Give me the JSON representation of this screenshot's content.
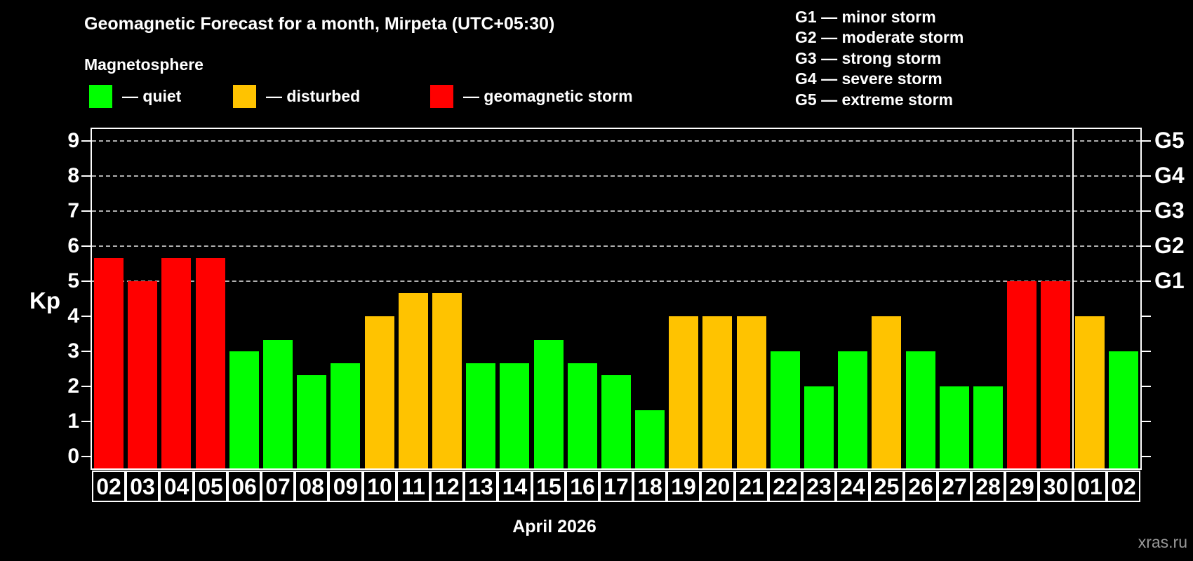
{
  "title": "Geomagnetic Forecast for a month, Mirpeta (UTC+05:30)",
  "subtitle": "Magnetosphere",
  "legend": {
    "quiet": "— quiet",
    "disturbed": "— disturbed",
    "storm": "— geomagnetic storm"
  },
  "g_legend": [
    "G1 — minor storm",
    "G2 — moderate storm",
    "G3 — strong storm",
    "G4 — severe storm",
    "G5 — extreme storm"
  ],
  "colors": {
    "quiet": "#00ff00",
    "disturbed": "#ffc300",
    "storm": "#ff0000",
    "background": "#000000",
    "grid": "#b0b0b0",
    "axis": "#ffffff",
    "watermark": "#999999"
  },
  "axis": {
    "kp_label": "Kp",
    "left_ticks": [
      "0",
      "1",
      "2",
      "3",
      "4",
      "5",
      "6",
      "7",
      "8",
      "9"
    ],
    "right_g_labels": [
      {
        "label": "G1",
        "kp": 5
      },
      {
        "label": "G2",
        "kp": 6
      },
      {
        "label": "G3",
        "kp": 7
      },
      {
        "label": "G4",
        "kp": 8
      },
      {
        "label": "G5",
        "kp": 9
      }
    ]
  },
  "x_axis_title": "April 2026",
  "watermark": "xras.ru",
  "chart_data": {
    "type": "bar",
    "title": "Geomagnetic Forecast for a month, Mirpeta (UTC+05:30)",
    "xlabel": "April 2026",
    "ylabel": "Kp",
    "ylim": [
      0,
      9
    ],
    "grid": "dashed horizontal lines at Kp 5-9 (G1-G5 levels)",
    "legend_position": "top",
    "categories": [
      "02",
      "03",
      "04",
      "05",
      "06",
      "07",
      "08",
      "09",
      "10",
      "11",
      "12",
      "13",
      "14",
      "15",
      "16",
      "17",
      "18",
      "19",
      "20",
      "21",
      "22",
      "23",
      "24",
      "25",
      "26",
      "27",
      "28",
      "29",
      "30",
      "01",
      "02"
    ],
    "values": [
      5.67,
      5.0,
      5.67,
      5.67,
      3.0,
      3.33,
      2.33,
      2.67,
      4.0,
      4.67,
      4.67,
      2.67,
      2.67,
      3.33,
      2.67,
      2.33,
      1.33,
      4.0,
      4.0,
      4.0,
      3.0,
      2.0,
      3.0,
      4.0,
      3.0,
      2.0,
      2.0,
      5.0,
      5.0,
      4.0,
      3.0
    ],
    "statuses": [
      "storm",
      "storm",
      "storm",
      "storm",
      "quiet",
      "quiet",
      "quiet",
      "quiet",
      "disturbed",
      "disturbed",
      "disturbed",
      "quiet",
      "quiet",
      "quiet",
      "quiet",
      "quiet",
      "quiet",
      "disturbed",
      "disturbed",
      "disturbed",
      "quiet",
      "quiet",
      "quiet",
      "disturbed",
      "quiet",
      "quiet",
      "quiet",
      "storm",
      "storm",
      "disturbed",
      "quiet"
    ],
    "gridlines_kp": [
      5,
      6,
      7,
      8,
      9
    ],
    "month_separator_after_index": 28
  }
}
